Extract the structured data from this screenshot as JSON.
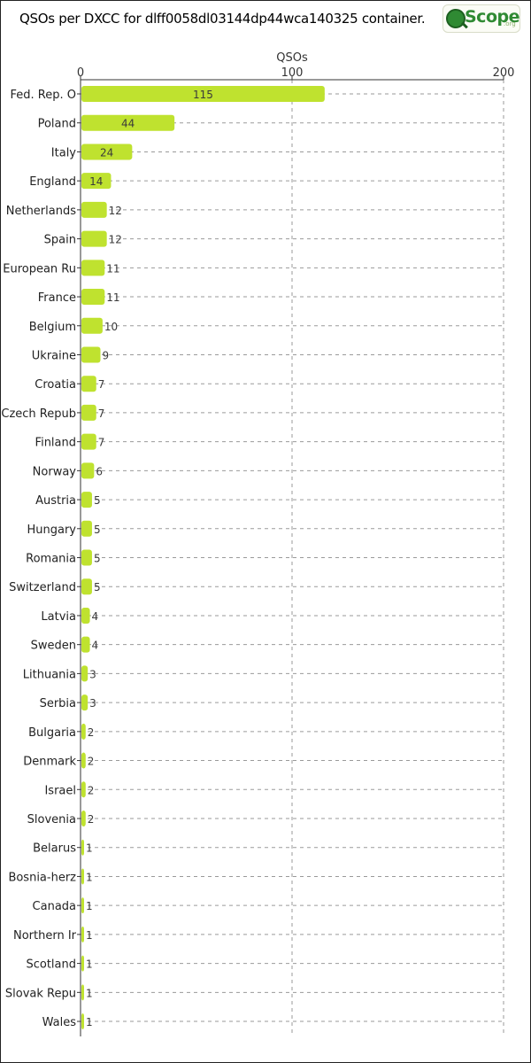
{
  "header": {
    "title": "QSOs per DXCC for dlff0058dl03144dp44wca140325 container.",
    "logo_text": "Scope",
    "logo_sub": ".org"
  },
  "colors": {
    "bar": "#bfe22f",
    "grid": "#9a9a9a",
    "axis": "#333333"
  },
  "chart_data": {
    "type": "bar",
    "orientation": "horizontal",
    "title": "QSOs per DXCC for dlff0058dl03144dp44wca140325 container.",
    "xlabel": "QSOs",
    "ylabel": "",
    "xlim": [
      0,
      200
    ],
    "xticks": [
      0,
      100,
      200
    ],
    "grid": true,
    "categories": [
      "Fed. Rep. O",
      "Poland",
      "Italy",
      "England",
      "Netherlands",
      "Spain",
      "European Ru",
      "France",
      "Belgium",
      "Ukraine",
      "Croatia",
      "Czech Repub",
      "Finland",
      "Norway",
      "Austria",
      "Hungary",
      "Romania",
      "Switzerland",
      "Latvia",
      "Sweden",
      "Lithuania",
      "Serbia",
      "Bulgaria",
      "Denmark",
      "Israel",
      "Slovenia",
      "Belarus",
      "Bosnia-herz",
      "Canada",
      "Northern Ir",
      "Scotland",
      "Slovak Repu",
      "Wales"
    ],
    "values": [
      115,
      44,
      24,
      14,
      12,
      12,
      11,
      11,
      10,
      9,
      7,
      7,
      7,
      6,
      5,
      5,
      5,
      5,
      4,
      4,
      3,
      3,
      2,
      2,
      2,
      2,
      1,
      1,
      1,
      1,
      1,
      1,
      1
    ]
  }
}
